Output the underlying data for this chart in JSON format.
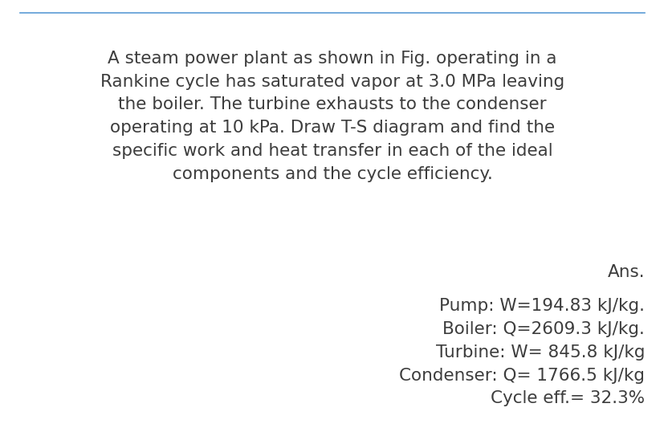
{
  "background_color": "#ffffff",
  "top_line_color": "#5b9bd5",
  "question_text": "A steam power plant as shown in Fig. operating in a\nRankine cycle has saturated vapor at 3.0 MPa leaving\nthe boiler. The turbine exhausts to the condenser\noperating at 10 kPa. Draw T-S diagram and find the\nspecific work and heat transfer in each of the ideal\ncomponents and the cycle efficiency.",
  "ans_label": "Ans.",
  "answer_lines": [
    "Pump: W=194.83 kJ/kg.",
    "Boiler: Q=2609.3 kJ/kg.",
    "Turbine: W= 845.8 kJ/kg",
    "Condenser: Q= 1766.5 kJ/kg",
    "Cycle eff.= 32.3%"
  ],
  "question_fontsize": 15.5,
  "answer_fontsize": 15.5,
  "text_color": "#3d3d3d",
  "fig_width": 8.28,
  "fig_height": 5.38,
  "dpi": 100
}
